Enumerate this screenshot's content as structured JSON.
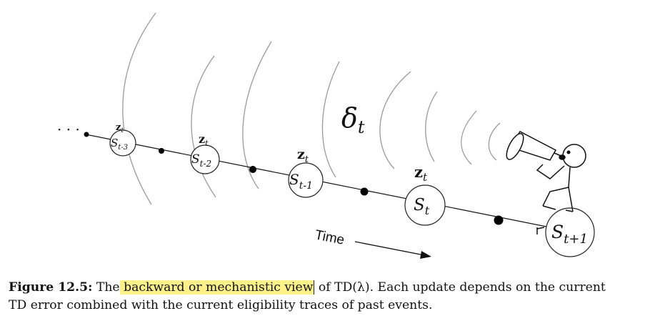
{
  "diagram": {
    "ellipsis": "· · ·",
    "delta_symbol": "δ",
    "delta_sub": "t",
    "time_label": "Time",
    "trace_symbol": "z",
    "trace_sub": "t",
    "states": [
      {
        "symbol": "S",
        "sub": "t-3"
      },
      {
        "symbol": "S",
        "sub": "t-2"
      },
      {
        "symbol": "S",
        "sub": "t-1"
      },
      {
        "symbol": "S",
        "sub": "t"
      },
      {
        "symbol": "S",
        "sub": "t+1"
      }
    ]
  },
  "caption": {
    "label": "Figure 12.5:",
    "pre_highlight": " The",
    "highlight": " backward or mechanistic view",
    "post_highlight": " of TD(λ). Each update depends on the current",
    "line2": "TD error combined with the current eligibility traces of past events."
  }
}
